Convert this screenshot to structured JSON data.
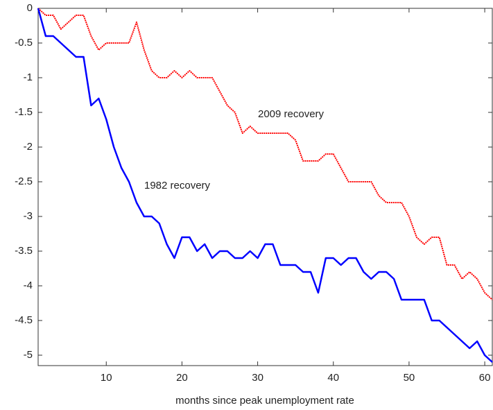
{
  "chart_data": {
    "type": "line",
    "xlabel": "months since peak unemployment rate",
    "x": [
      1,
      2,
      3,
      4,
      5,
      6,
      7,
      8,
      9,
      10,
      11,
      12,
      13,
      14,
      15,
      16,
      17,
      18,
      19,
      20,
      21,
      22,
      23,
      24,
      25,
      26,
      27,
      28,
      29,
      30,
      31,
      32,
      33,
      34,
      35,
      36,
      37,
      38,
      39,
      40,
      41,
      42,
      43,
      44,
      45,
      46,
      47,
      48,
      49,
      50,
      51,
      52,
      53,
      54,
      55,
      56,
      57,
      58,
      59,
      60,
      61
    ],
    "series": [
      {
        "name": "2009 recovery",
        "color": "#ff0000",
        "dashed": true,
        "values": [
          0,
          -0.1,
          -0.1,
          -0.3,
          -0.2,
          -0.1,
          -0.1,
          -0.4,
          -0.6,
          -0.5,
          -0.5,
          -0.5,
          -0.5,
          -0.2,
          -0.6,
          -0.9,
          -1.0,
          -1.0,
          -0.9,
          -1.0,
          -0.9,
          -1.0,
          -1.0,
          -1.0,
          -1.2,
          -1.4,
          -1.5,
          -1.8,
          -1.7,
          -1.8,
          -1.8,
          -1.8,
          -1.8,
          -1.8,
          -1.9,
          -2.2,
          -2.2,
          -2.2,
          -2.1,
          -2.1,
          -2.3,
          -2.5,
          -2.5,
          -2.5,
          -2.5,
          -2.7,
          -2.8,
          -2.8,
          -2.8,
          -3.0,
          -3.3,
          -3.4,
          -3.3,
          -3.3,
          -3.7,
          -3.7,
          -3.9,
          -3.8,
          -3.9,
          -4.1,
          -4.2
        ]
      },
      {
        "name": "1982 recovery",
        "color": "#0000ff",
        "dashed": false,
        "values": [
          0,
          -0.4,
          -0.4,
          -0.5,
          -0.6,
          -0.7,
          -0.7,
          -1.4,
          -1.3,
          -1.6,
          -2.0,
          -2.3,
          -2.5,
          -2.8,
          -3.0,
          -3.0,
          -3.1,
          -3.4,
          -3.6,
          -3.3,
          -3.3,
          -3.5,
          -3.4,
          -3.6,
          -3.5,
          -3.5,
          -3.6,
          -3.6,
          -3.5,
          -3.6,
          -3.4,
          -3.4,
          -3.7,
          -3.7,
          -3.7,
          -3.8,
          -3.8,
          -4.1,
          -3.6,
          -3.6,
          -3.7,
          -3.6,
          -3.6,
          -3.8,
          -3.9,
          -3.8,
          -3.8,
          -3.9,
          -4.2,
          -4.2,
          -4.2,
          -4.2,
          -4.5,
          -4.5,
          -4.6,
          -4.7,
          -4.8,
          -4.9,
          -4.8,
          -5.0,
          -5.1
        ]
      }
    ],
    "xlim": [
      1,
      61
    ],
    "xticks": [
      10,
      20,
      30,
      40,
      50,
      60
    ],
    "ylim": [
      -5.15,
      0
    ],
    "yticks": [
      0,
      -0.5,
      -1,
      -1.5,
      -2,
      -2.5,
      -3,
      -3.5,
      -4,
      -4.5,
      -5
    ],
    "grid": false
  }
}
